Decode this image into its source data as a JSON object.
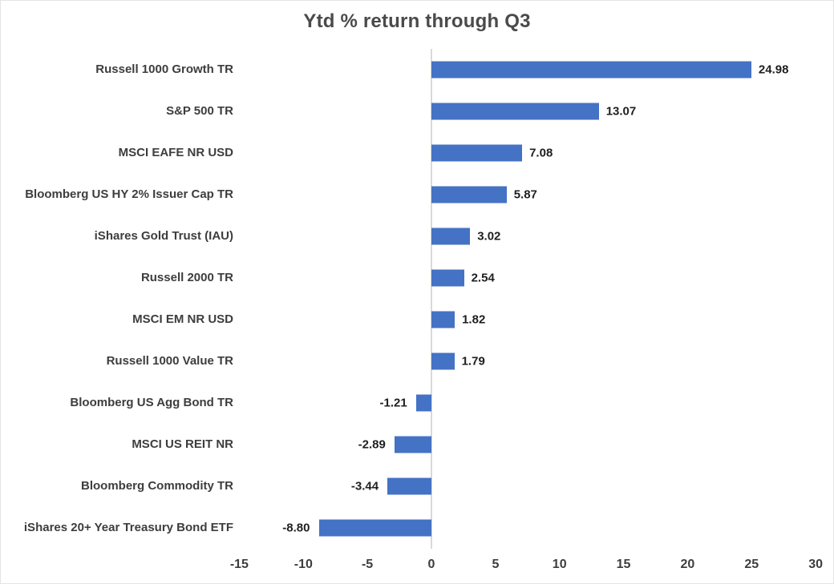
{
  "chart_data": {
    "type": "bar",
    "orientation": "horizontal",
    "title": "Ytd % return through Q3",
    "categories": [
      "Russell 1000 Growth TR",
      "S&P 500 TR",
      "MSCI EAFE NR USD",
      "Bloomberg US HY 2% Issuer Cap TR",
      "iShares Gold Trust (IAU)",
      "Russell 2000 TR",
      "MSCI EM NR USD",
      "Russell 1000 Value TR",
      "Bloomberg US Agg Bond TR",
      "MSCI US REIT NR",
      "Bloomberg Commodity TR",
      "iShares 20+ Year Treasury Bond ETF"
    ],
    "values": [
      24.98,
      13.07,
      7.08,
      5.87,
      3.02,
      2.54,
      1.82,
      1.79,
      -1.21,
      -2.89,
      -3.44,
      -8.8
    ],
    "value_labels": [
      "24.98",
      "13.07",
      "7.08",
      "5.87",
      "3.02",
      "2.54",
      "1.82",
      "1.79",
      "-1.21",
      "-2.89",
      "-3.44",
      "-8.80"
    ],
    "x_ticks": [
      -15,
      -10,
      -5,
      0,
      5,
      10,
      15,
      20,
      25,
      30
    ],
    "xlim": [
      -15,
      30
    ],
    "xlabel": "",
    "ylabel": "",
    "grid": false,
    "legend": false,
    "data_labels": true,
    "colors": {
      "bar_fill": "#4472c4",
      "zero_axis_line": "#d9d9d9",
      "title_text": "#4a4a4a",
      "category_text": "#3d3d3d",
      "value_text": "#1f1f1f",
      "tick_text": "#3d3d3d",
      "background": "#ffffff",
      "chart_border": "#e4e4e4"
    }
  }
}
